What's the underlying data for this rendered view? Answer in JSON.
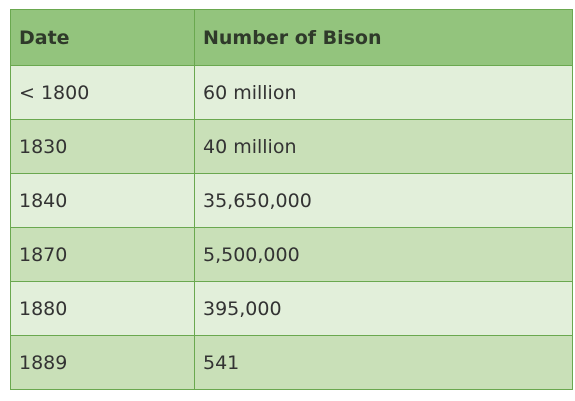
{
  "table": {
    "headers": [
      "Date",
      "Number of Bison"
    ],
    "rows": [
      [
        "< 1800",
        "60 million"
      ],
      [
        "1830",
        "40 million"
      ],
      [
        "1840",
        "35,650,000"
      ],
      [
        "1870",
        "5,500,000"
      ],
      [
        "1880",
        "395,000"
      ],
      [
        "1889",
        "541"
      ]
    ]
  },
  "colors": {
    "header_bg": "#93c47d",
    "row_light": "#e2efda",
    "row_dark": "#c9e0b8",
    "border": "#6aa84f"
  }
}
